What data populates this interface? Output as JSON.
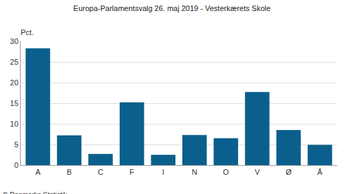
{
  "chart_data": {
    "type": "bar",
    "title": "Europa-Parlamentsvalg 26. maj 2019 - Vesterkærets Skole",
    "ylabel": "Pct.",
    "source": "© Danmarks Statistik",
    "categories": [
      "A",
      "B",
      "C",
      "F",
      "I",
      "N",
      "O",
      "V",
      "Ø",
      "Å"
    ],
    "values": [
      28.3,
      7.2,
      2.7,
      15.2,
      2.5,
      7.3,
      6.5,
      17.7,
      8.5,
      4.9
    ],
    "color": "#0b5f8c",
    "ylim": [
      0,
      30
    ],
    "yticks": [
      0,
      5,
      10,
      15,
      20,
      25,
      30
    ],
    "grid": true
  }
}
